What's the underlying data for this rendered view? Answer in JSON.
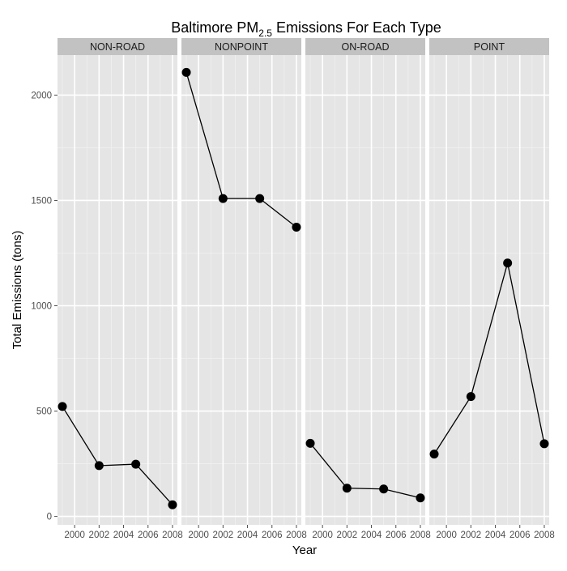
{
  "chart_data": {
    "type": "line",
    "title": {
      "prefix": "Baltimore PM",
      "subscript": "2.5",
      "suffix": " Emissions For Each Type"
    },
    "xlabel": "Year",
    "ylabel": "Total Emissions (tons)",
    "x": [
      1999,
      2002,
      2005,
      2008
    ],
    "x_ticks": [
      2000,
      2002,
      2004,
      2006,
      2008
    ],
    "x_tick_labels": [
      "2000",
      "2002",
      "2004",
      "2006",
      "2008"
    ],
    "xlim": [
      1998.6,
      2008.4
    ],
    "y_ticks": [
      0,
      500,
      1000,
      1500,
      2000
    ],
    "y_tick_labels": [
      "0",
      "500",
      "1000",
      "1500",
      "2000"
    ],
    "ylim": [
      -40,
      2190
    ],
    "facets": [
      {
        "name": "NON-ROAD",
        "values": [
          522,
          241,
          248,
          55
        ]
      },
      {
        "name": "NONPOINT",
        "values": [
          2108,
          1509,
          1509,
          1373
        ]
      },
      {
        "name": "ON-ROAD",
        "values": [
          347,
          134,
          130,
          88
        ]
      },
      {
        "name": "POINT",
        "values": [
          296,
          569,
          1203,
          345
        ]
      }
    ],
    "grid": true,
    "legend": "none",
    "colors": {
      "panel_background": "#e5e5e5",
      "strip_background": "#c2c2c2",
      "grid_major": "#ffffff",
      "grid_minor": "#f0f0f0",
      "line": "#000000",
      "point": "#000000"
    }
  }
}
